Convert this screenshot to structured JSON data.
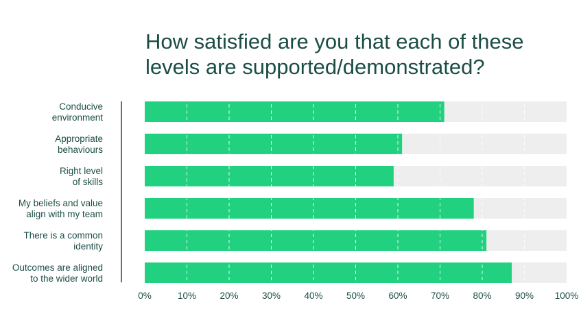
{
  "chart_data": {
    "type": "bar",
    "orientation": "horizontal",
    "stacked_with_remainder": true,
    "title_lines": [
      "How satisfied are you that each of these",
      "levels are supported/demonstrated?"
    ],
    "categories": [
      [
        "Conducive",
        "environment"
      ],
      [
        "Appropriate",
        "behaviours"
      ],
      [
        "Right level",
        "of skills"
      ],
      [
        "My beliefs and value",
        "align with my team"
      ],
      [
        "There is a common",
        "identity"
      ],
      [
        "Outcomes are aligned",
        "to the wider world"
      ]
    ],
    "values": [
      71,
      61,
      59,
      78,
      81,
      87
    ],
    "xlim": [
      0,
      100
    ],
    "ticks": [
      "0%",
      "10%",
      "20%",
      "30%",
      "40%",
      "50%",
      "60%",
      "70%",
      "80%",
      "90%",
      "100%"
    ],
    "grid": true,
    "colors": {
      "bar": "#22d17f",
      "track": "#eeeeee",
      "text": "#1b4d45",
      "axis": "#1b4d45",
      "grid": "#ffffff"
    }
  }
}
